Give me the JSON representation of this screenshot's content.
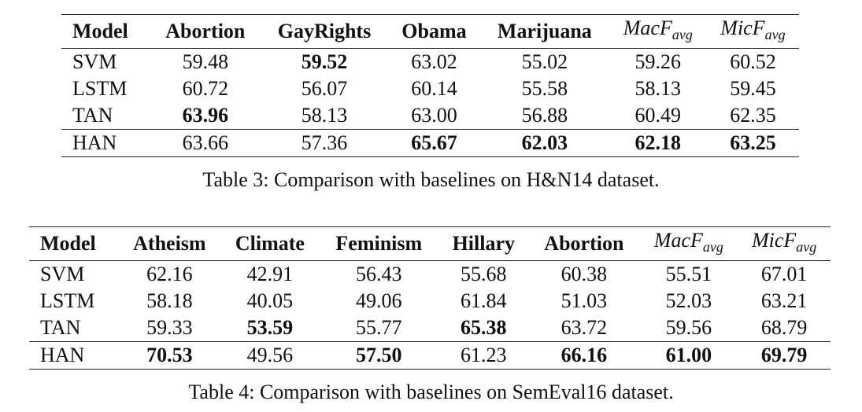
{
  "table3": {
    "headers": [
      "Model",
      "Abortion",
      "GayRights",
      "Obama",
      "Marijuana"
    ],
    "math_headers": [
      {
        "base": "MacF",
        "sub": "avg"
      },
      {
        "base": "MicF",
        "sub": "avg"
      }
    ],
    "rows": [
      {
        "model": "SVM",
        "values": [
          "59.48",
          "59.52",
          "63.02",
          "55.02",
          "59.26",
          "60.52"
        ]
      },
      {
        "model": "LSTM",
        "values": [
          "60.72",
          "56.07",
          "60.14",
          "55.58",
          "58.13",
          "59.45"
        ]
      },
      {
        "model": "TAN",
        "values": [
          "63.96",
          "58.13",
          "63.00",
          "56.88",
          "60.49",
          "62.35"
        ]
      },
      {
        "model": "HAN",
        "values": [
          "63.66",
          "57.36",
          "65.67",
          "62.03",
          "62.18",
          "63.25"
        ]
      }
    ],
    "bold": [
      [
        0,
        1
      ],
      [
        2,
        0
      ],
      [
        3,
        2
      ],
      [
        3,
        3
      ],
      [
        3,
        4
      ],
      [
        3,
        5
      ]
    ],
    "caption": "Table 3: Comparison with baselines on H&N14 dataset."
  },
  "table4": {
    "headers": [
      "Model",
      "Atheism",
      "Climate",
      "Feminism",
      "Hillary",
      "Abortion"
    ],
    "math_headers": [
      {
        "base": "MacF",
        "sub": "avg"
      },
      {
        "base": "MicF",
        "sub": "avg"
      }
    ],
    "rows": [
      {
        "model": "SVM",
        "values": [
          "62.16",
          "42.91",
          "56.43",
          "55.68",
          "60.38",
          "55.51",
          "67.01"
        ]
      },
      {
        "model": "LSTM",
        "values": [
          "58.18",
          "40.05",
          "49.06",
          "61.84",
          "51.03",
          "52.03",
          "63.21"
        ]
      },
      {
        "model": "TAN",
        "values": [
          "59.33",
          "53.59",
          "55.77",
          "65.38",
          "63.72",
          "59.56",
          "68.79"
        ]
      },
      {
        "model": "HAN",
        "values": [
          "70.53",
          "49.56",
          "57.50",
          "61.23",
          "66.16",
          "61.00",
          "69.79"
        ]
      }
    ],
    "bold": [
      [
        2,
        1
      ],
      [
        2,
        3
      ],
      [
        3,
        0
      ],
      [
        3,
        2
      ],
      [
        3,
        4
      ],
      [
        3,
        5
      ],
      [
        3,
        6
      ]
    ],
    "caption": "Table 4: Comparison with baselines on SemEval16 dataset."
  }
}
